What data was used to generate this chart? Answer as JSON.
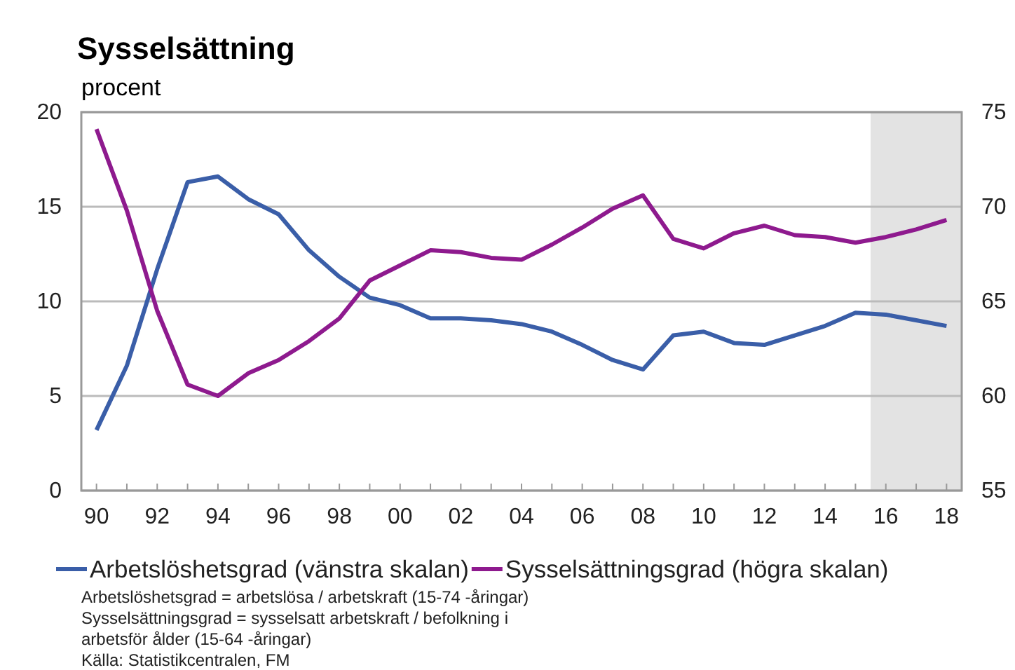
{
  "chart_data": {
    "type": "line",
    "title": "Sysselsättning",
    "subtitle": "procent",
    "x": [
      1990,
      1991,
      1992,
      1993,
      1994,
      1995,
      1996,
      1997,
      1998,
      1999,
      2000,
      2001,
      2002,
      2003,
      2004,
      2005,
      2006,
      2007,
      2008,
      2009,
      2010,
      2011,
      2012,
      2013,
      2014,
      2015,
      2016,
      2017,
      2018
    ],
    "series": [
      {
        "name": "Arbetslöshetsgrad (vänstra skalan)",
        "color": "#3a5ea8",
        "values": [
          3.2,
          6.6,
          11.7,
          16.3,
          16.6,
          15.4,
          14.6,
          12.7,
          11.3,
          10.2,
          9.8,
          9.1,
          9.1,
          9.0,
          8.8,
          8.4,
          7.7,
          6.9,
          6.4,
          8.2,
          8.4,
          7.8,
          7.7,
          8.2,
          8.7,
          9.4,
          9.3,
          9.0,
          8.7
        ]
      },
      {
        "name": "Sysselsättningsgrad (högra skalan)",
        "color": "#8e1a8e",
        "axis": "y2",
        "values": [
          74.1,
          69.8,
          64.5,
          60.6,
          60.0,
          61.2,
          61.9,
          62.9,
          64.1,
          66.1,
          66.9,
          67.7,
          67.6,
          67.3,
          67.2,
          68.0,
          68.9,
          69.9,
          70.6,
          68.3,
          67.8,
          68.6,
          69.0,
          68.5,
          68.4,
          68.1,
          68.4,
          68.8,
          69.3
        ]
      }
    ],
    "xlim": [
      1989.5,
      2018.5
    ],
    "xticks": [
      {
        "value": 1990,
        "label": "90"
      },
      {
        "value": 1991,
        "label": null
      },
      {
        "value": 1992,
        "label": "92"
      },
      {
        "value": 1993,
        "label": null
      },
      {
        "value": 1994,
        "label": "94"
      },
      {
        "value": 1995,
        "label": null
      },
      {
        "value": 1996,
        "label": "96"
      },
      {
        "value": 1997,
        "label": null
      },
      {
        "value": 1998,
        "label": "98"
      },
      {
        "value": 1999,
        "label": null
      },
      {
        "value": 2000,
        "label": "00"
      },
      {
        "value": 2001,
        "label": null
      },
      {
        "value": 2002,
        "label": "02"
      },
      {
        "value": 2003,
        "label": null
      },
      {
        "value": 2004,
        "label": "04"
      },
      {
        "value": 2005,
        "label": null
      },
      {
        "value": 2006,
        "label": "06"
      },
      {
        "value": 2007,
        "label": null
      },
      {
        "value": 2008,
        "label": "08"
      },
      {
        "value": 2009,
        "label": null
      },
      {
        "value": 2010,
        "label": "10"
      },
      {
        "value": 2011,
        "label": null
      },
      {
        "value": 2012,
        "label": "12"
      },
      {
        "value": 2013,
        "label": null
      },
      {
        "value": 2014,
        "label": "14"
      },
      {
        "value": 2015,
        "label": null
      },
      {
        "value": 2016,
        "label": "16"
      },
      {
        "value": 2017,
        "label": null
      },
      {
        "value": 2018,
        "label": "18"
      }
    ],
    "ylim": [
      0,
      20
    ],
    "yticks": [
      0,
      5,
      10,
      15,
      20
    ],
    "y2lim": [
      55,
      75
    ],
    "y2ticks": [
      55,
      60,
      65,
      70,
      75
    ],
    "bands": [
      {
        "axis": "x",
        "from": 2015.5,
        "to": 2018.5,
        "color": "#e3e3e3"
      }
    ],
    "grid": "y",
    "legend": "bottom",
    "line_style": "solid",
    "marker": "none",
    "annotations": [
      "Arbetslöshetsgrad = arbetslösa / arbetskraft (15-74 -åringar)",
      "Sysselsättningsgrad = sysselsatt arbetskraft / befolkning i arbetsför ålder (15-64 -åringar)",
      "Källa: Statistikcentralen, FM"
    ]
  }
}
